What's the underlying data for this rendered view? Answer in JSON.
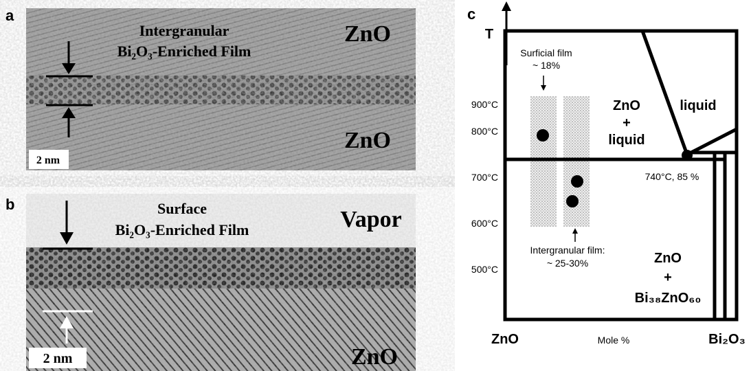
{
  "panel_a": {
    "letter": "a",
    "label_line1": "Intergranular",
    "label_line2": "Bi₂O₃-Enriched Film",
    "top_phase": "ZnO",
    "bottom_phase": "ZnO",
    "scale_bar": "2 nm"
  },
  "panel_b": {
    "letter": "b",
    "label_line1": "Surface",
    "label_line2": "Bi₂O₃-Enriched Film",
    "top_phase": "Vapor",
    "bottom_phase": "ZnO",
    "scale_bar": "2 nm"
  },
  "panel_c": {
    "letter": "c",
    "axis_t": "T",
    "temperatures": [
      "900°C",
      "800°C",
      "700°C",
      "600°C",
      "500°C"
    ],
    "surficial_line1": "Surficial film",
    "surficial_line2": "~ 18%",
    "region_zno_liquid": [
      "ZnO",
      "+",
      "liquid"
    ],
    "region_liquid": "liquid",
    "eutectic": "740°C, 85 %",
    "intergranular_line1": "Intergranular film:",
    "intergranular_line2": "~ 25-30%",
    "region_zno_bi": [
      "ZnO",
      "+",
      "Bi₃₈ZnO₆₀"
    ],
    "x_left": "ZnO",
    "x_mid": "Mole %",
    "x_right": "Bi₂O₃"
  }
}
